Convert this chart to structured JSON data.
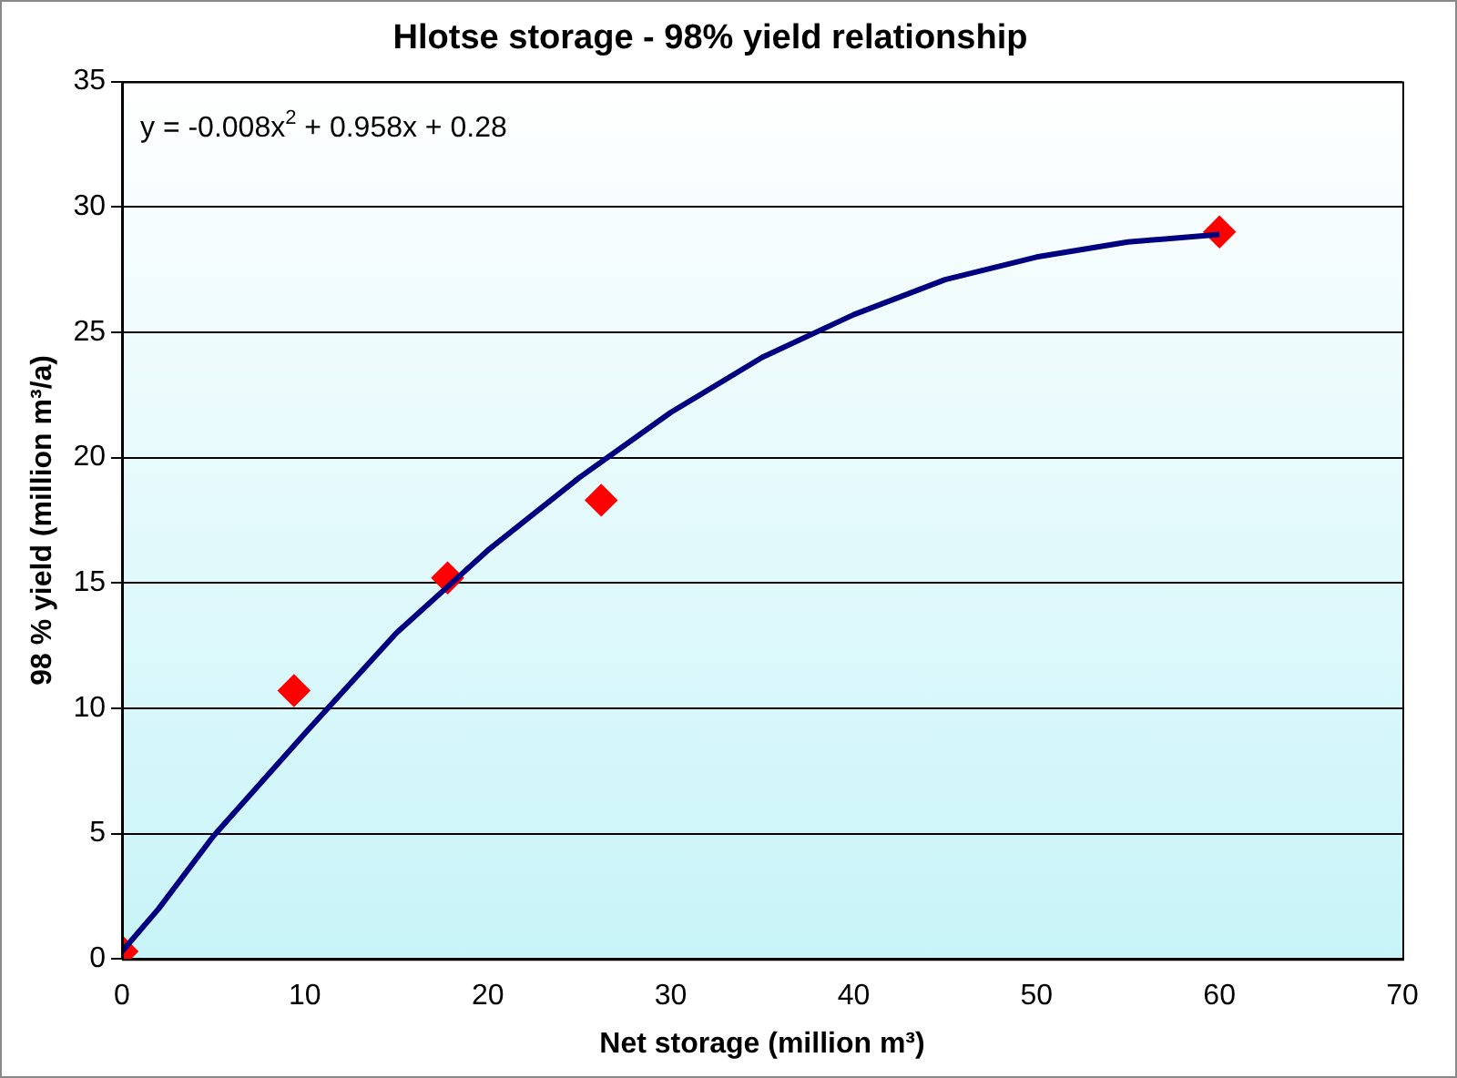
{
  "chart_data": {
    "type": "scatter",
    "title": "Hlotse storage - 98% yield relationship",
    "xlabel": "Net storage (million m³)",
    "ylabel": "98 % yield (million m³/a)",
    "xlim": [
      0,
      70
    ],
    "xticks": [
      0,
      10,
      20,
      30,
      40,
      50,
      60,
      70
    ],
    "ylim": [
      0,
      35
    ],
    "yticks": [
      0,
      5,
      10,
      15,
      20,
      25,
      30,
      35
    ],
    "grid": "y",
    "legend": false,
    "annotations": [
      "y = -0.008x$^{2}$ + 0.958x + 0.28"
    ],
    "series": [
      {
        "type": "line",
        "color": "#000080",
        "marker": "none",
        "line_style": "solid",
        "x": [
          0,
          2,
          5,
          10,
          15,
          20,
          25,
          30,
          35,
          40,
          45,
          50,
          55,
          60
        ],
        "values": [
          0.3,
          2,
          4.9,
          9,
          13,
          16.3,
          19.2,
          21.8,
          24,
          25.7,
          27.1,
          28,
          28.6,
          28.9
        ]
      },
      {
        "color": "#ff0000",
        "marker": "diamond",
        "x": [
          0,
          9.4,
          17.8,
          26.2,
          60
        ],
        "values": [
          0.3,
          10.7,
          15.2,
          18.3,
          29
        ]
      }
    ]
  }
}
